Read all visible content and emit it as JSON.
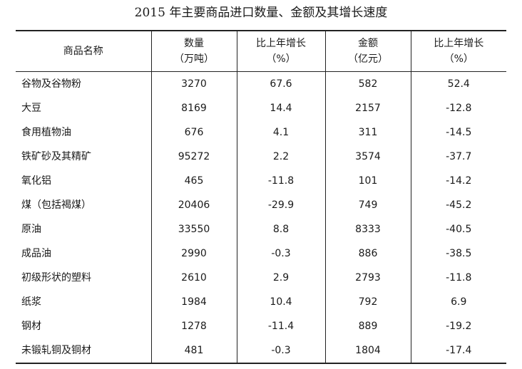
{
  "title": "2015 年主要商品进口数量、金额及其增长速度",
  "table": {
    "headers": {
      "name": "商品名称",
      "quantity": [
        "数量",
        "（万吨）"
      ],
      "quantity_growth": [
        "比上年增长",
        "（%）"
      ],
      "amount": [
        "金额",
        "（亿元）"
      ],
      "amount_growth": [
        "比上年增长",
        "（%）"
      ]
    },
    "rows": [
      {
        "name": "谷物及谷物粉",
        "quantity": "3270",
        "quantity_growth": "67.6",
        "amount": "582",
        "amount_growth": "52.4"
      },
      {
        "name": "大豆",
        "quantity": "8169",
        "quantity_growth": "14.4",
        "amount": "2157",
        "amount_growth": "-12.8"
      },
      {
        "name": "食用植物油",
        "quantity": "676",
        "quantity_growth": "4.1",
        "amount": "311",
        "amount_growth": "-14.5"
      },
      {
        "name": "铁矿砂及其精矿",
        "quantity": "95272",
        "quantity_growth": "2.2",
        "amount": "3574",
        "amount_growth": "-37.7"
      },
      {
        "name": "氧化铝",
        "quantity": "465",
        "quantity_growth": "-11.8",
        "amount": "101",
        "amount_growth": "-14.2"
      },
      {
        "name": "煤（包括褐煤）",
        "quantity": "20406",
        "quantity_growth": "-29.9",
        "amount": "749",
        "amount_growth": "-45.2"
      },
      {
        "name": "原油",
        "quantity": "33550",
        "quantity_growth": "8.8",
        "amount": "8333",
        "amount_growth": "-40.5"
      },
      {
        "name": "成品油",
        "quantity": "2990",
        "quantity_growth": "-0.3",
        "amount": "886",
        "amount_growth": "-38.5"
      },
      {
        "name": "初级形状的塑料",
        "quantity": "2610",
        "quantity_growth": "2.9",
        "amount": "2793",
        "amount_growth": "-11.8"
      },
      {
        "name": "纸浆",
        "quantity": "1984",
        "quantity_growth": "10.4",
        "amount": "792",
        "amount_growth": "6.9"
      },
      {
        "name": "钢材",
        "quantity": "1278",
        "quantity_growth": "-11.4",
        "amount": "889",
        "amount_growth": "-19.2"
      },
      {
        "name": "未锻轧铜及铜材",
        "quantity": "481",
        "quantity_growth": "-0.3",
        "amount": "1804",
        "amount_growth": "-17.4"
      }
    ]
  }
}
